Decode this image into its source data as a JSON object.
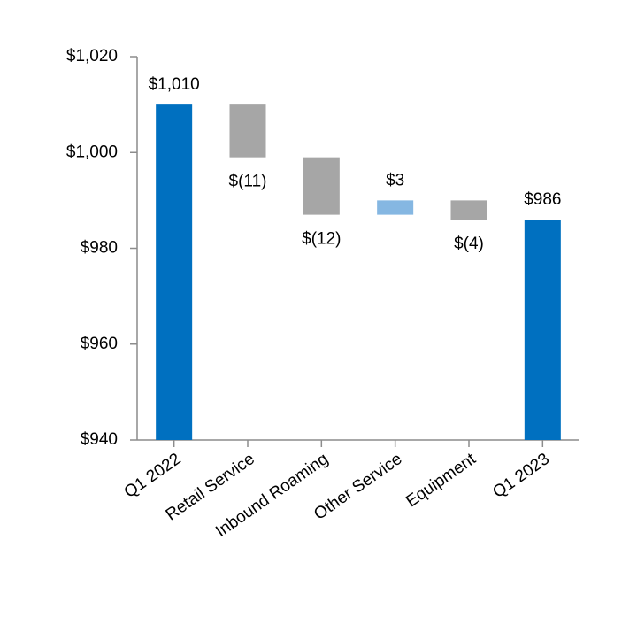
{
  "chart_data": {
    "type": "waterfall",
    "categories": [
      "Q1 2022",
      "Retail Service",
      "Inbound Roaming",
      "Other Service",
      "Equipment",
      "Q1 2023"
    ],
    "values": [
      1010,
      -11,
      -12,
      3,
      -4,
      986
    ],
    "value_labels": [
      "$1,010",
      "$(11)",
      "$(12)",
      "$3",
      "$(4)",
      "$986"
    ],
    "measures": [
      "total",
      "relative",
      "relative",
      "relative",
      "relative",
      "total"
    ],
    "colors": {
      "total": "#0070c0",
      "increase": "#85b7e2",
      "decrease": "#a6a6a6"
    },
    "ylim": [
      940,
      1020
    ],
    "yticks": [
      {
        "value": 940,
        "label": "$940"
      },
      {
        "value": 960,
        "label": "$960"
      },
      {
        "value": 980,
        "label": "$980"
      },
      {
        "value": 1000,
        "label": "$1,000"
      },
      {
        "value": 1020,
        "label": "$1,020"
      }
    ],
    "grid": false
  }
}
